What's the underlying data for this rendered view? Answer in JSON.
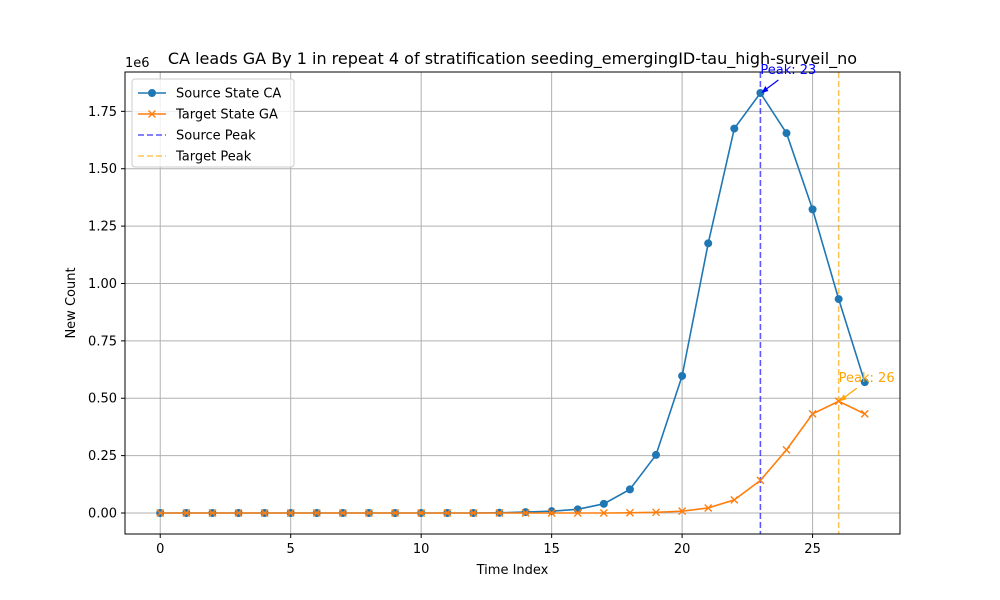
{
  "chart_data": {
    "type": "line",
    "title": "CA leads GA By 1 in repeat 4 of stratification seeding_emergingID-tau_high-surveil_no",
    "xlabel": "Time Index",
    "ylabel": "New Count",
    "y_offset_label": "1e6",
    "xlim": [
      -1.35,
      28.35
    ],
    "ylim": [
      -0.0915,
      1.9215
    ],
    "x_ticks": [
      0,
      5,
      10,
      15,
      20,
      25
    ],
    "x_tick_labels": [
      "0",
      "5",
      "10",
      "15",
      "20",
      "25"
    ],
    "y_ticks": [
      0,
      0.25,
      0.5,
      0.75,
      1.0,
      1.25,
      1.5,
      1.75
    ],
    "y_tick_labels": [
      "0.00",
      "0.25",
      "0.50",
      "0.75",
      "1.00",
      "1.25",
      "1.50",
      "1.75"
    ],
    "grid": true,
    "legend_position": "upper-left",
    "x": [
      0,
      1,
      2,
      3,
      4,
      5,
      6,
      7,
      8,
      9,
      10,
      11,
      12,
      13,
      14,
      15,
      16,
      17,
      18,
      19,
      20,
      21,
      22,
      23,
      24,
      25,
      26,
      27
    ],
    "series": [
      {
        "name": "Source State CA",
        "color": "#1f77b4",
        "marker": "circle",
        "values": [
          0,
          0,
          0,
          0,
          0,
          0,
          0,
          0,
          0,
          0,
          0,
          0,
          0,
          0.001,
          0.004,
          0.008,
          0.016,
          0.04,
          0.103,
          0.253,
          0.597,
          1.175,
          1.675,
          1.83,
          1.655,
          1.323,
          0.932,
          0.57
        ]
      },
      {
        "name": "Target State GA",
        "color": "#ff7f0e",
        "marker": "x",
        "values": [
          0,
          0,
          0,
          0,
          0,
          0,
          0,
          0,
          0,
          0,
          0,
          0,
          0,
          0,
          0,
          0,
          0,
          0,
          0.001,
          0.003,
          0.008,
          0.022,
          0.057,
          0.142,
          0.275,
          0.432,
          0.487,
          0.432
        ]
      }
    ],
    "vlines": [
      {
        "name": "Source Peak",
        "x": 23,
        "color": "#0000ff",
        "style": "dashed"
      },
      {
        "name": "Target Peak",
        "x": 26,
        "color": "#ffa500",
        "style": "dashed"
      }
    ],
    "annotations": [
      {
        "text": "Peak: 23",
        "x": 23,
        "y": 1.83,
        "color": "#0000ff"
      },
      {
        "text": "Peak: 26",
        "x": 26,
        "y": 0.487,
        "color": "#ffa500"
      }
    ]
  }
}
